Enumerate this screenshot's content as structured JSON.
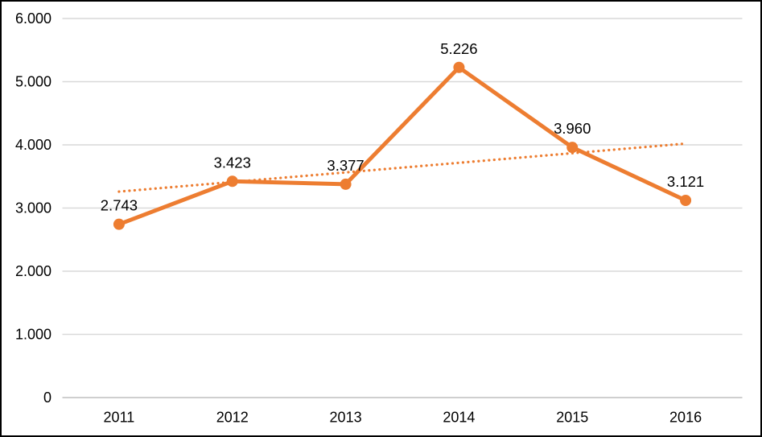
{
  "chart_data": {
    "type": "line",
    "title": "",
    "categories": [
      "2011",
      "2012",
      "2013",
      "2014",
      "2015",
      "2016"
    ],
    "series": [
      {
        "values": [
          2743,
          3423,
          3377,
          5226,
          3960,
          3121
        ],
        "data_labels": [
          "2.743",
          "3.423",
          "3.377",
          "5.226",
          "3.960",
          "3.121"
        ],
        "marker": "circle"
      }
    ],
    "trendline": {
      "type": "linear",
      "style": "dotted",
      "start_value": 3260,
      "end_value": 4020
    },
    "y_axis": {
      "min": 0,
      "max": 6000,
      "step": 1000,
      "tick_labels": [
        "0",
        "1.000",
        "2.000",
        "3.000",
        "4.000",
        "5.000",
        "6.000"
      ]
    },
    "x_axis": {
      "tick_labels": [
        "2011",
        "2012",
        "2013",
        "2014",
        "2015",
        "2016"
      ]
    },
    "grid": true,
    "legend": "none",
    "colors": {
      "series": "#ED7D31",
      "trendline": "#ED7D31",
      "gridline": "#D9D9D9",
      "axis_line": "#BFBFBF",
      "text": "#000000",
      "background": "#FFFFFF",
      "border": "#000000"
    }
  }
}
